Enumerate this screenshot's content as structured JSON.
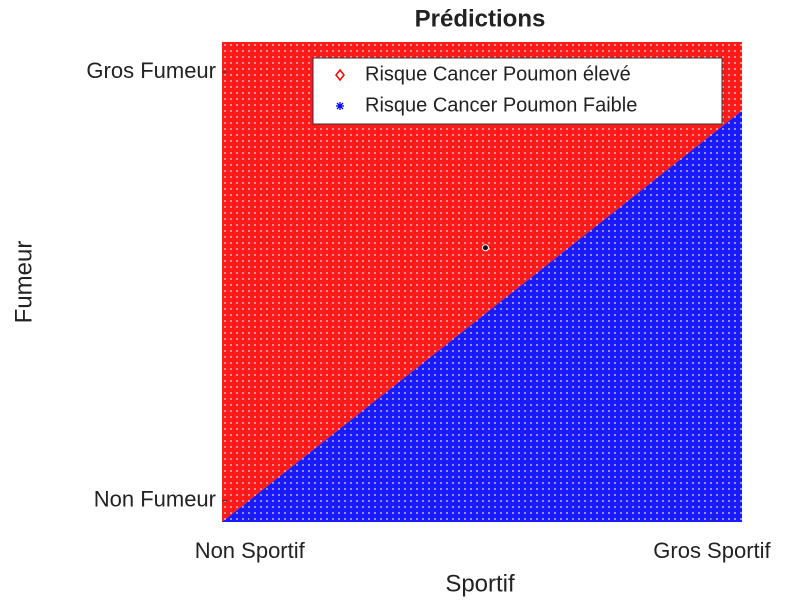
{
  "chart_data": {
    "type": "area",
    "title": "Prédictions",
    "x_label": "Sportif",
    "y_label": "Fumeur",
    "xlim": [
      -0.06,
      1.065
    ],
    "ylim": [
      -0.05,
      1.07
    ],
    "xticks": [
      {
        "value": 0,
        "label": "Non Sportif"
      },
      {
        "value": 1,
        "label": "Gros Sportif"
      }
    ],
    "yticks": [
      {
        "value": 0,
        "label": "Non Fumeur"
      },
      {
        "value": 1,
        "label": "Gros Fumeur"
      }
    ],
    "boundary": {
      "x": [
        -0.06,
        1.065
      ],
      "y": [
        -0.05,
        0.91
      ]
    },
    "series": [
      {
        "name": "Risque Cancer Poumon élevé",
        "color": "#ff0000",
        "marker": "diamond",
        "region": "above"
      },
      {
        "name": "Risque Cancer Poumon Faible",
        "color": "#0000ff",
        "marker": "asterisk",
        "region": "below"
      }
    ],
    "point": {
      "x": 0.51,
      "y": 0.59
    },
    "legend": "top-right"
  }
}
